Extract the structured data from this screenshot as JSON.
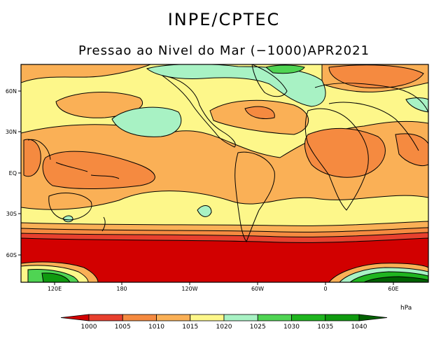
{
  "header": {
    "agency": "INPE/CPTEC",
    "title": "Pressao ao Nivel do Mar (−1000)APR2021"
  },
  "map": {
    "lat_labels": [
      "60N",
      "30N",
      "EQ",
      "30S",
      "60S"
    ],
    "lon_labels": [
      "120E",
      "180",
      "120W",
      "60W",
      "0",
      "60E"
    ]
  },
  "legend": {
    "unit": "hPa",
    "levels": [
      "1000",
      "1005",
      "1010",
      "1015",
      "1020",
      "1025",
      "1030",
      "1035",
      "1040"
    ],
    "colors": [
      "#d20000",
      "#e8402e",
      "#f58a40",
      "#fab056",
      "#fdf78a",
      "#a8f2c4",
      "#4fd453",
      "#1fb51f",
      "#0f9a0f",
      "#006100"
    ]
  }
}
